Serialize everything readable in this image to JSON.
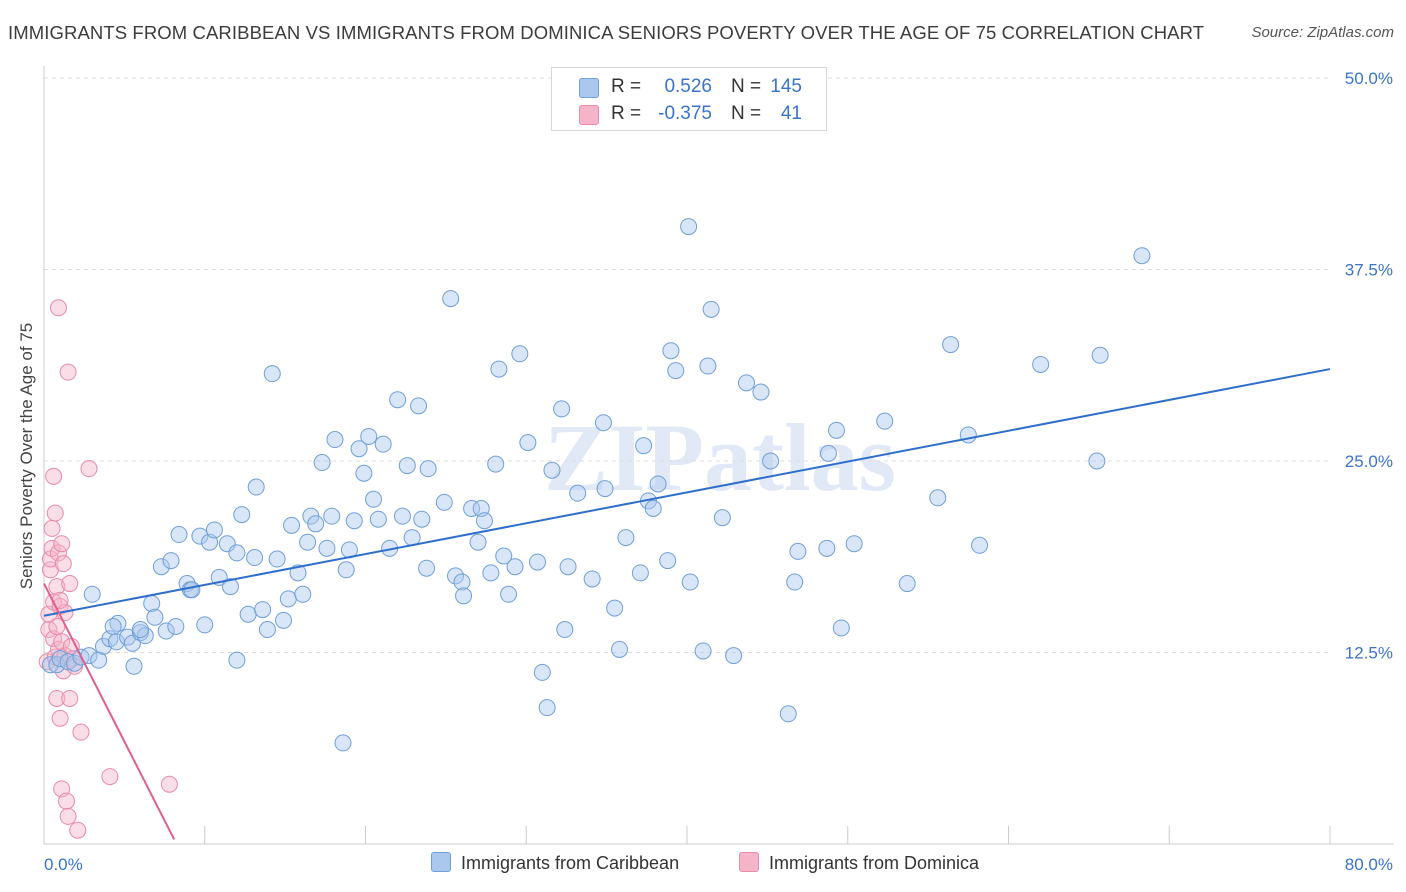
{
  "header": {
    "title": "IMMIGRANTS FROM CARIBBEAN VS IMMIGRANTS FROM DOMINICA SENIORS POVERTY OVER THE AGE OF 75 CORRELATION CHART",
    "source": "Source: ZipAtlas.com"
  },
  "watermark": "ZIPatlas",
  "legend_top": {
    "rows": [
      {
        "r_label": "R =",
        "r_value": "0.526",
        "n_label": "N =",
        "n_value": "145"
      },
      {
        "r_label": "R =",
        "r_value": "-0.375",
        "n_label": "N =",
        "n_value": "41"
      }
    ]
  },
  "legend_bottom": {
    "items": [
      {
        "label": "Immigrants from Caribbean"
      },
      {
        "label": "Immigrants from Dominica"
      }
    ]
  },
  "colors": {
    "blue_fill": "#aac8ee",
    "blue_stroke": "#6f9fd8",
    "blue_line": "#2f6fcc",
    "pink_fill": "#f5b5c9",
    "pink_stroke": "#e88aa8",
    "pink_line": "#e0608e",
    "tick_text": "#3a74c9",
    "grid": "#dcdcdc"
  },
  "chart_data": {
    "type": "scatter",
    "title": "IMMIGRANTS FROM CARIBBEAN VS IMMIGRANTS FROM DOMINICA SENIORS POVERTY OVER THE AGE OF 75 CORRELATION CHART",
    "xlabel": "",
    "ylabel": "Seniors Poverty Over the Age of 75",
    "xlim": [
      0,
      80
    ],
    "ylim": [
      0,
      50
    ],
    "x_tick_labels": [
      "0.0%",
      "80.0%"
    ],
    "y_ticks": [
      12.5,
      25.0,
      37.5,
      50.0
    ],
    "y_tick_labels": [
      "12.5%",
      "25.0%",
      "37.5%",
      "50.0%"
    ],
    "series": [
      {
        "name": "Immigrants from Caribbean",
        "color": "#aac8ee",
        "r": 0.526,
        "n": 145,
        "trend": {
          "x": [
            0,
            80
          ],
          "y": [
            14.9,
            31.0
          ]
        },
        "points": [
          [
            0.4,
            11.7
          ],
          [
            0.8,
            11.7
          ],
          [
            1.0,
            12.1
          ],
          [
            1.5,
            11.9
          ],
          [
            1.9,
            11.8
          ],
          [
            2.3,
            12.2
          ],
          [
            2.8,
            12.3
          ],
          [
            3.4,
            12.0
          ],
          [
            3.0,
            16.3
          ],
          [
            3.7,
            12.9
          ],
          [
            4.1,
            13.4
          ],
          [
            4.5,
            13.2
          ],
          [
            4.6,
            14.4
          ],
          [
            5.2,
            13.5
          ],
          [
            5.5,
            13.1
          ],
          [
            5.6,
            11.6
          ],
          [
            6.0,
            13.8
          ],
          [
            6.3,
            13.6
          ],
          [
            6.7,
            15.7
          ],
          [
            6.9,
            14.8
          ],
          [
            7.3,
            18.1
          ],
          [
            7.6,
            13.9
          ],
          [
            7.9,
            18.5
          ],
          [
            8.2,
            14.2
          ],
          [
            8.4,
            20.2
          ],
          [
            8.9,
            17.0
          ],
          [
            9.1,
            16.6
          ],
          [
            9.7,
            20.1
          ],
          [
            10.0,
            14.3
          ],
          [
            10.3,
            19.7
          ],
          [
            10.6,
            20.5
          ],
          [
            10.9,
            17.4
          ],
          [
            11.4,
            19.6
          ],
          [
            11.6,
            16.8
          ],
          [
            12.0,
            12.0
          ],
          [
            12.3,
            21.5
          ],
          [
            12.7,
            15.0
          ],
          [
            13.1,
            18.7
          ],
          [
            13.2,
            23.3
          ],
          [
            13.6,
            15.3
          ],
          [
            13.9,
            14.0
          ],
          [
            14.2,
            30.7
          ],
          [
            14.5,
            18.6
          ],
          [
            14.9,
            14.6
          ],
          [
            15.2,
            16.0
          ],
          [
            15.4,
            20.8
          ],
          [
            15.8,
            17.7
          ],
          [
            16.1,
            16.3
          ],
          [
            16.4,
            19.7
          ],
          [
            16.6,
            21.4
          ],
          [
            16.9,
            20.9
          ],
          [
            17.3,
            24.9
          ],
          [
            17.6,
            19.3
          ],
          [
            17.9,
            21.4
          ],
          [
            18.1,
            26.4
          ],
          [
            18.8,
            17.9
          ],
          [
            19.0,
            19.2
          ],
          [
            19.3,
            21.1
          ],
          [
            19.6,
            25.8
          ],
          [
            19.9,
            24.2
          ],
          [
            20.2,
            26.6
          ],
          [
            20.5,
            22.5
          ],
          [
            20.8,
            21.2
          ],
          [
            21.1,
            26.1
          ],
          [
            21.5,
            19.3
          ],
          [
            22.0,
            29.0
          ],
          [
            22.3,
            21.4
          ],
          [
            22.6,
            24.7
          ],
          [
            22.9,
            20.0
          ],
          [
            23.3,
            28.6
          ],
          [
            23.5,
            21.2
          ],
          [
            23.8,
            18.0
          ],
          [
            23.9,
            24.5
          ],
          [
            24.9,
            22.3
          ],
          [
            25.3,
            35.6
          ],
          [
            25.6,
            17.5
          ],
          [
            26.0,
            17.1
          ],
          [
            26.1,
            16.2
          ],
          [
            26.6,
            21.9
          ],
          [
            27.0,
            19.7
          ],
          [
            27.2,
            21.9
          ],
          [
            27.4,
            21.1
          ],
          [
            27.8,
            17.7
          ],
          [
            28.1,
            24.8
          ],
          [
            28.3,
            31.0
          ],
          [
            28.6,
            18.8
          ],
          [
            28.9,
            16.3
          ],
          [
            29.3,
            18.1
          ],
          [
            29.6,
            32.0
          ],
          [
            30.1,
            26.2
          ],
          [
            30.7,
            18.4
          ],
          [
            31.0,
            11.2
          ],
          [
            31.3,
            8.9
          ],
          [
            31.6,
            24.4
          ],
          [
            32.2,
            28.4
          ],
          [
            32.4,
            14.0
          ],
          [
            32.6,
            18.1
          ],
          [
            33.2,
            22.9
          ],
          [
            34.1,
            17.3
          ],
          [
            34.8,
            27.5
          ],
          [
            34.9,
            23.2
          ],
          [
            35.5,
            15.4
          ],
          [
            35.8,
            12.7
          ],
          [
            36.2,
            20.0
          ],
          [
            37.1,
            17.7
          ],
          [
            37.3,
            26.0
          ],
          [
            37.6,
            22.4
          ],
          [
            37.9,
            21.9
          ],
          [
            38.2,
            23.5
          ],
          [
            38.8,
            18.5
          ],
          [
            39.0,
            32.2
          ],
          [
            39.3,
            30.9
          ],
          [
            40.1,
            40.3
          ],
          [
            40.2,
            17.1
          ],
          [
            41.0,
            12.6
          ],
          [
            41.3,
            31.2
          ],
          [
            41.5,
            34.9
          ],
          [
            42.2,
            21.3
          ],
          [
            42.9,
            12.3
          ],
          [
            43.7,
            30.1
          ],
          [
            44.6,
            29.5
          ],
          [
            45.2,
            25.0
          ],
          [
            46.3,
            8.5
          ],
          [
            46.7,
            17.1
          ],
          [
            46.9,
            19.1
          ],
          [
            48.8,
            25.5
          ],
          [
            48.7,
            19.3
          ],
          [
            49.3,
            27.0
          ],
          [
            49.6,
            14.1
          ],
          [
            50.4,
            19.6
          ],
          [
            52.3,
            27.6
          ],
          [
            53.7,
            17.0
          ],
          [
            55.6,
            22.6
          ],
          [
            56.4,
            32.6
          ],
          [
            57.5,
            26.7
          ],
          [
            58.2,
            19.5
          ],
          [
            62.0,
            31.3
          ],
          [
            65.5,
            25.0
          ],
          [
            65.7,
            31.9
          ],
          [
            68.3,
            38.4
          ],
          [
            18.6,
            6.6
          ],
          [
            12.0,
            19.0
          ],
          [
            6.0,
            14.0
          ],
          [
            4.3,
            14.2
          ],
          [
            9.2,
            16.6
          ]
        ]
      },
      {
        "name": "Immigrants from Dominica",
        "color": "#f5b5c9",
        "r": -0.375,
        "n": 41,
        "trend": {
          "x": [
            0,
            8.1
          ],
          "y": [
            17.0,
            0.3
          ]
        },
        "points": [
          [
            0.2,
            11.9
          ],
          [
            0.3,
            14.0
          ],
          [
            0.3,
            15.0
          ],
          [
            0.4,
            17.9
          ],
          [
            0.4,
            18.6
          ],
          [
            0.5,
            19.3
          ],
          [
            0.5,
            20.6
          ],
          [
            0.6,
            13.4
          ],
          [
            0.6,
            15.8
          ],
          [
            0.6,
            24.0
          ],
          [
            0.7,
            21.6
          ],
          [
            0.7,
            12.2
          ],
          [
            0.8,
            14.2
          ],
          [
            0.8,
            16.8
          ],
          [
            0.8,
            9.5
          ],
          [
            0.9,
            19.0
          ],
          [
            0.9,
            12.7
          ],
          [
            0.9,
            35.0
          ],
          [
            1.0,
            8.2
          ],
          [
            1.0,
            15.5
          ],
          [
            1.1,
            19.6
          ],
          [
            1.1,
            13.2
          ],
          [
            1.1,
            3.6
          ],
          [
            1.2,
            18.3
          ],
          [
            1.2,
            11.3
          ],
          [
            1.3,
            15.1
          ],
          [
            1.3,
            12.3
          ],
          [
            1.4,
            2.8
          ],
          [
            1.5,
            1.8
          ],
          [
            1.5,
            30.8
          ],
          [
            1.6,
            9.5
          ],
          [
            1.6,
            17.0
          ],
          [
            1.7,
            12.9
          ],
          [
            1.8,
            12.1
          ],
          [
            1.9,
            11.6
          ],
          [
            2.1,
            0.9
          ],
          [
            2.3,
            7.3
          ],
          [
            2.8,
            24.5
          ],
          [
            4.1,
            4.4
          ],
          [
            7.8,
            3.9
          ],
          [
            1.0,
            15.9
          ]
        ]
      }
    ]
  }
}
